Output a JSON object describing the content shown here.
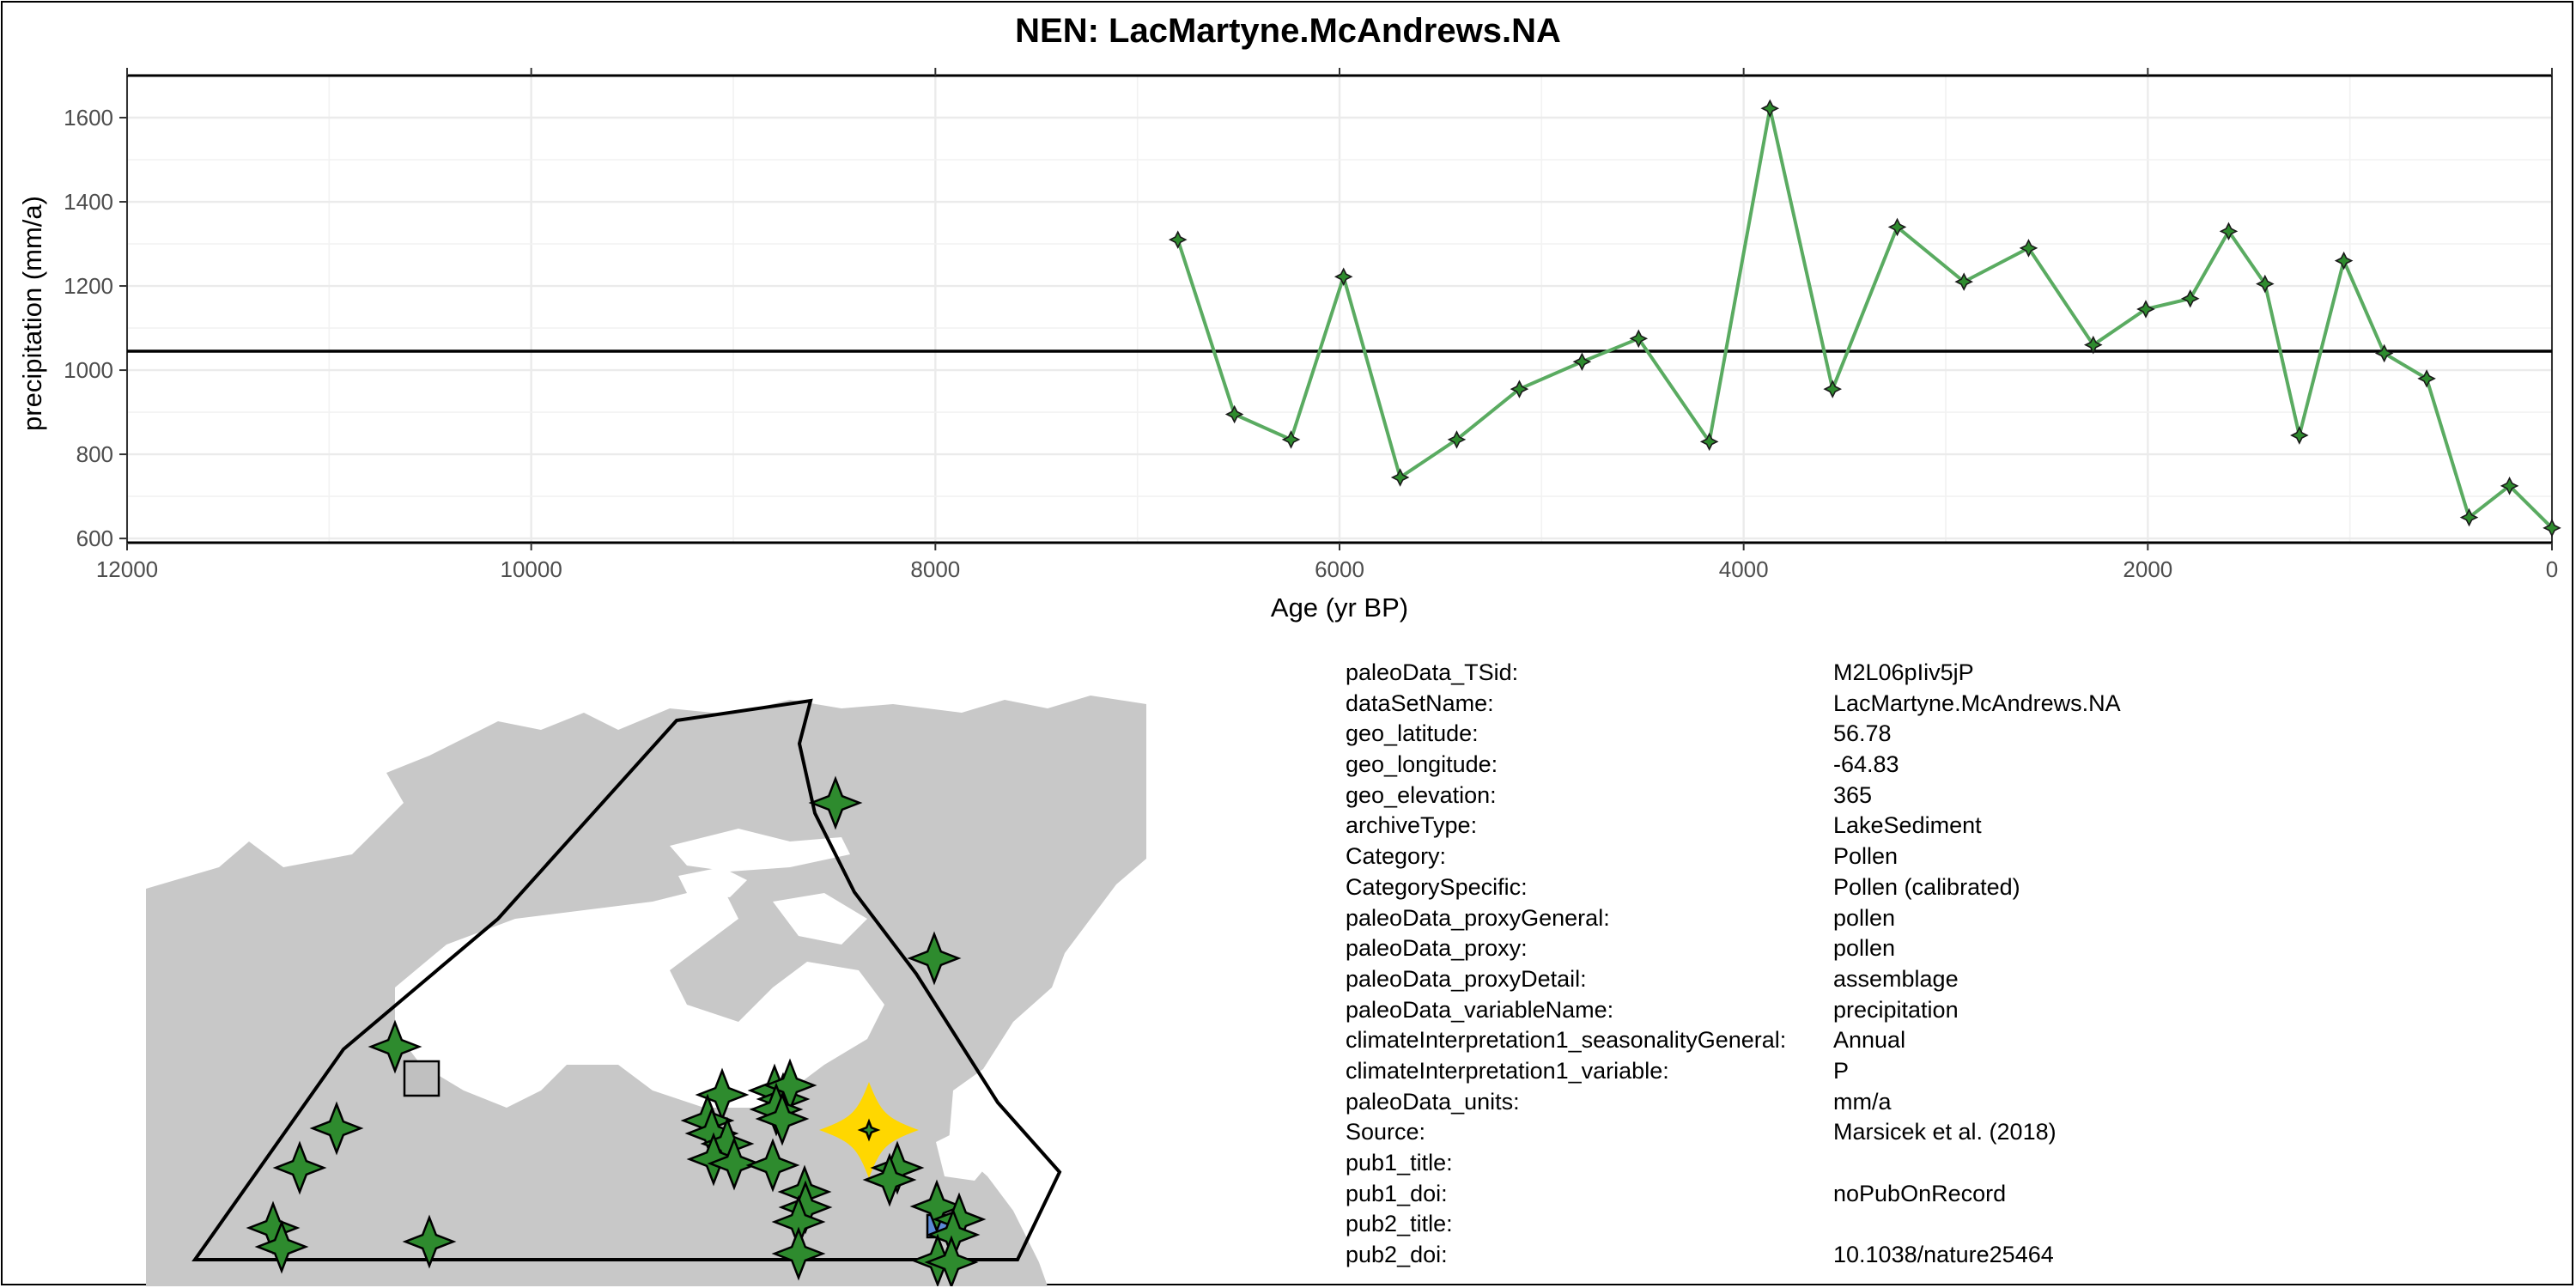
{
  "title": "NEN: LacMartyne.McAndrews.NA",
  "chart_data": {
    "type": "line",
    "title": "NEN: LacMartyne.McAndrews.NA",
    "xlabel": "Age (yr BP)",
    "ylabel": "precipitation (mm/a)",
    "xlim": [
      12000,
      0
    ],
    "x_reversed": true,
    "ylim": [
      590,
      1700
    ],
    "xticks": [
      12000,
      10000,
      8000,
      6000,
      4000,
      2000,
      0
    ],
    "yticks": [
      600,
      800,
      1000,
      1200,
      1400,
      1600
    ],
    "reference_line": 1045,
    "grid": true,
    "series": [
      {
        "color": "#5aab61",
        "marker": "four-point-star",
        "x": [
          6800,
          6520,
          6240,
          5980,
          5700,
          5420,
          5110,
          4800,
          4520,
          4170,
          3870,
          3560,
          3240,
          2910,
          2590,
          2270,
          2010,
          1790,
          1600,
          1420,
          1250,
          1030,
          830,
          620,
          410,
          210,
          0
        ],
        "y": [
          1310,
          895,
          835,
          1222,
          745,
          835,
          955,
          1020,
          1075,
          830,
          1622,
          955,
          1340,
          1210,
          1290,
          1060,
          1145,
          1170,
          1330,
          1205,
          845,
          1260,
          1040,
          980,
          650,
          725,
          625
        ]
      }
    ]
  },
  "map": {
    "land_color": "#c8c8c8",
    "site_marker_color": "#2e8b2e",
    "highlight_color": "#ffd700",
    "other_markers": [
      "grey-square",
      "blue-rectangle"
    ]
  },
  "metadata": [
    {
      "key": "paleoData_TSid:",
      "value": "M2L06pIiv5jP"
    },
    {
      "key": "dataSetName:",
      "value": "LacMartyne.McAndrews.NA"
    },
    {
      "key": "geo_latitude:",
      "value": "56.78"
    },
    {
      "key": "geo_longitude:",
      "value": "-64.83"
    },
    {
      "key": "geo_elevation:",
      "value": "365"
    },
    {
      "key": "archiveType:",
      "value": "LakeSediment"
    },
    {
      "key": "Category:",
      "value": "Pollen"
    },
    {
      "key": "CategorySpecific:",
      "value": "Pollen (calibrated)"
    },
    {
      "key": "paleoData_proxyGeneral:",
      "value": "pollen"
    },
    {
      "key": "paleoData_proxy:",
      "value": "pollen"
    },
    {
      "key": "paleoData_proxyDetail:",
      "value": "assemblage"
    },
    {
      "key": "paleoData_variableName:",
      "value": "precipitation"
    },
    {
      "key": "climateInterpretation1_seasonalityGeneral:",
      "value": "Annual"
    },
    {
      "key": "climateInterpretation1_variable:",
      "value": "P"
    },
    {
      "key": "paleoData_units:",
      "value": "mm/a"
    },
    {
      "key": "Source:",
      "value": "Marsicek et al. (2018)"
    },
    {
      "key": "pub1_title:",
      "value": ""
    },
    {
      "key": "pub1_doi:",
      "value": "noPubOnRecord"
    },
    {
      "key": "pub2_title:",
      "value": ""
    },
    {
      "key": "pub2_doi:",
      "value": "10.1038/nature25464"
    }
  ]
}
